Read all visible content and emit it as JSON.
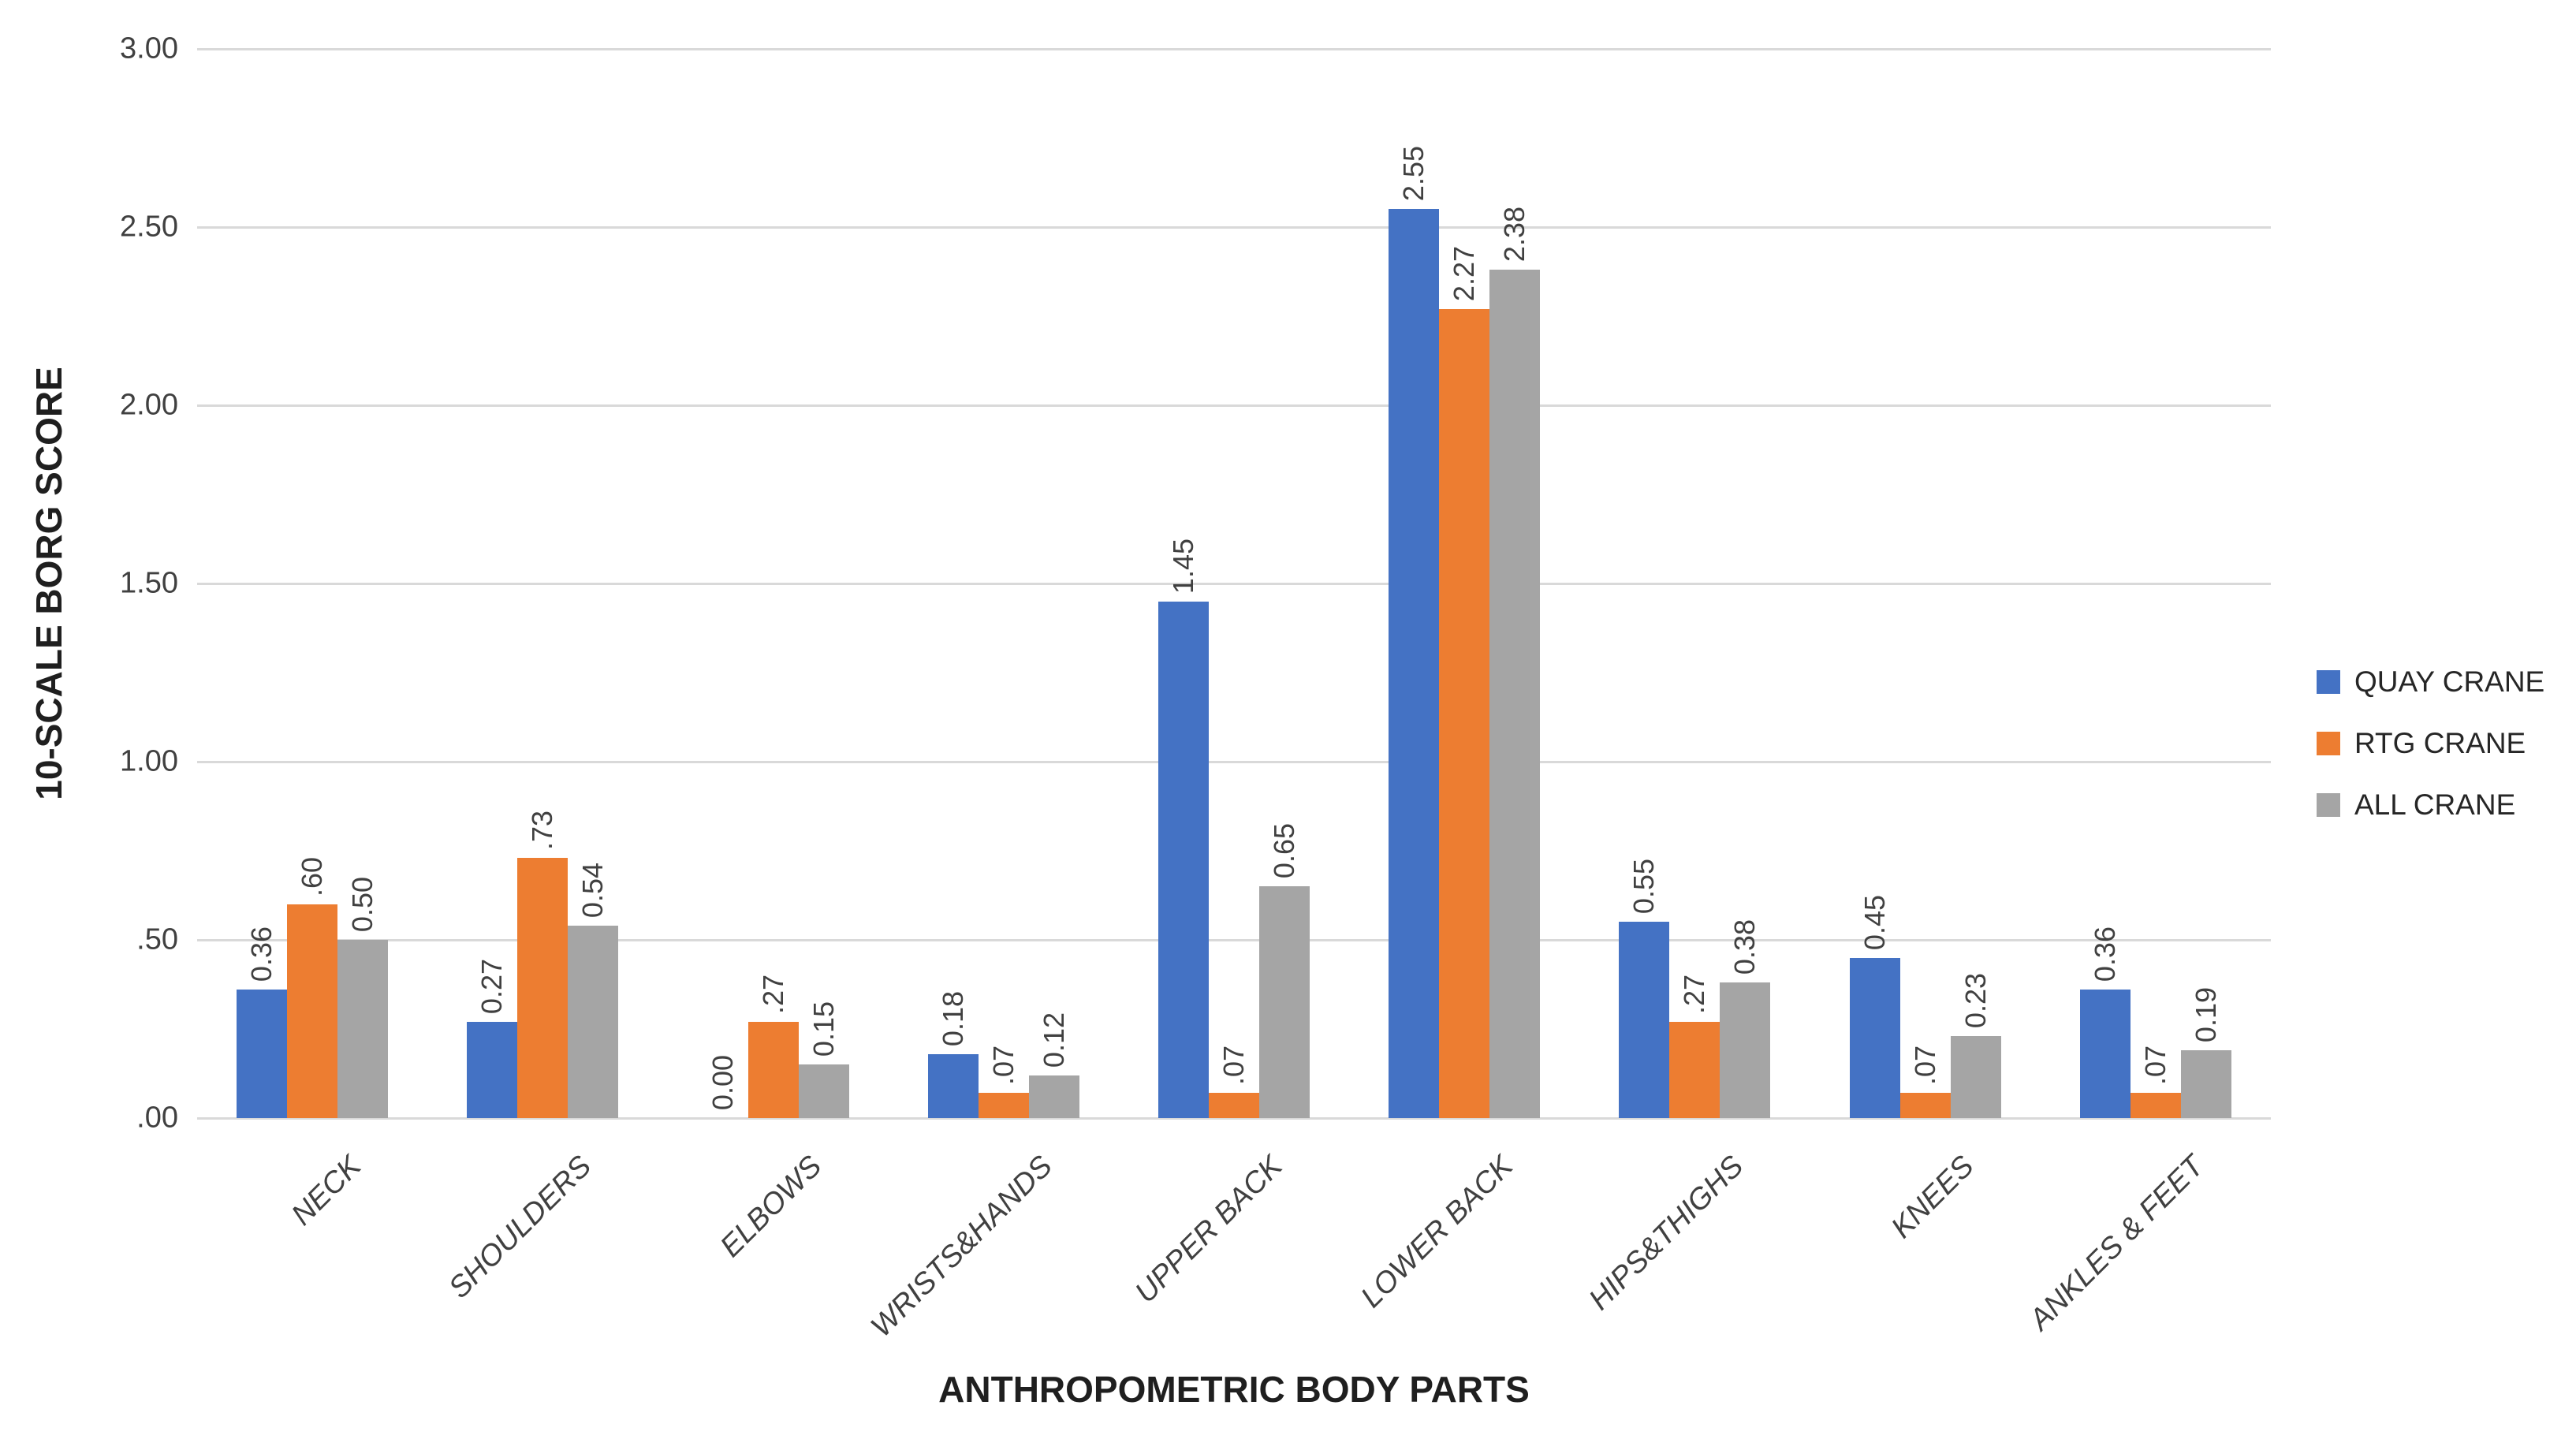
{
  "colors": {
    "quay_crane": "#4472C4",
    "rtg_crane": "#ED7D31",
    "all_crane": "#A5A5A5",
    "gridline": "#D9D9D9",
    "label_text": "#404040"
  },
  "chart_data": {
    "type": "bar",
    "title": "",
    "xlabel": "ANTHROPOMETRIC BODY PARTS",
    "ylabel": "10-SCALE BORG SCORE",
    "ylim": [
      0,
      3
    ],
    "ytick_step": 0.5,
    "yticks_top_to_bottom": [
      "3.00",
      "2.50",
      "2.00",
      "1.50",
      "1.00",
      ".50",
      ".00"
    ],
    "grid": true,
    "legend_position": "right",
    "categories": [
      "NECK",
      "SHOULDERS",
      "ELBOWS",
      "WRISTS&HANDS",
      "UPPER BACK",
      "LOWER BACK",
      "HIPS&THIGHS",
      "KNEES",
      "ANKLES & FEET"
    ],
    "series": [
      {
        "name": "QUAY CRANE",
        "color": "#4472C4",
        "values": [
          0.36,
          0.27,
          0.0,
          0.18,
          1.45,
          2.55,
          0.55,
          0.45,
          0.36
        ],
        "labels": [
          "0.36",
          "0.27",
          "0.00",
          "0.18",
          "1.45",
          "2.55",
          "0.55",
          "0.45",
          "0.36"
        ]
      },
      {
        "name": "RTG CRANE",
        "color": "#ED7D31",
        "values": [
          0.6,
          0.73,
          0.27,
          0.07,
          0.07,
          2.27,
          0.27,
          0.07,
          0.07
        ],
        "labels": [
          ".60",
          ".73",
          ".27",
          ".07",
          ".07",
          "2.27",
          ".27",
          ".07",
          ".07"
        ]
      },
      {
        "name": "ALL CRANE",
        "color": "#A5A5A5",
        "values": [
          0.5,
          0.54,
          0.15,
          0.12,
          0.65,
          2.38,
          0.38,
          0.23,
          0.19
        ],
        "labels": [
          "0.50",
          "0.54",
          "0.15",
          "0.12",
          "0.65",
          "2.38",
          "0.38",
          "0.23",
          "0.19"
        ]
      }
    ]
  }
}
